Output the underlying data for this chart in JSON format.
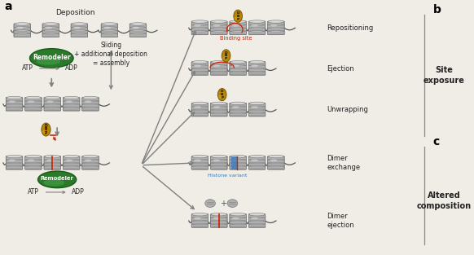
{
  "bg_color": "#f0ece6",
  "label_a": "a",
  "label_b": "b",
  "label_c": "c",
  "deposition_text": "Deposition",
  "sliding_text": "Sliding\n+ additional deposition\n= assembly",
  "remodeler_text": "Remodeler",
  "atp_text": "ATP",
  "adp_text": "ADP",
  "dbp_text": "DBP",
  "binding_site_text": "Binding site",
  "histone_variant_text": "Histone variant",
  "site_exposure_text": "Site\nexposure",
  "altered_composition_text": "Altered\ncomposition",
  "outcomes": [
    "Repositioning",
    "Ejection",
    "Unwrapping",
    "Dimer\nexchange",
    "Dimer\nejection"
  ],
  "remodeler_green": "#2a7a2a",
  "remodeler_green_dark": "#1a5a1a",
  "remodeler_green_hi": "#4caf50",
  "dbp_gold": "#b8860b",
  "dbp_gold_light": "#d4a820",
  "nuc_base": "#b0b0b0",
  "nuc_ring": "#909090",
  "nuc_light": "#d8d8d8",
  "nuc_dark": "#787878",
  "red_mark": "#cc2200",
  "blue_mark": "#3377bb",
  "arrow_color": "#808080",
  "dna_color": "#555555",
  "text_color": "#222222"
}
